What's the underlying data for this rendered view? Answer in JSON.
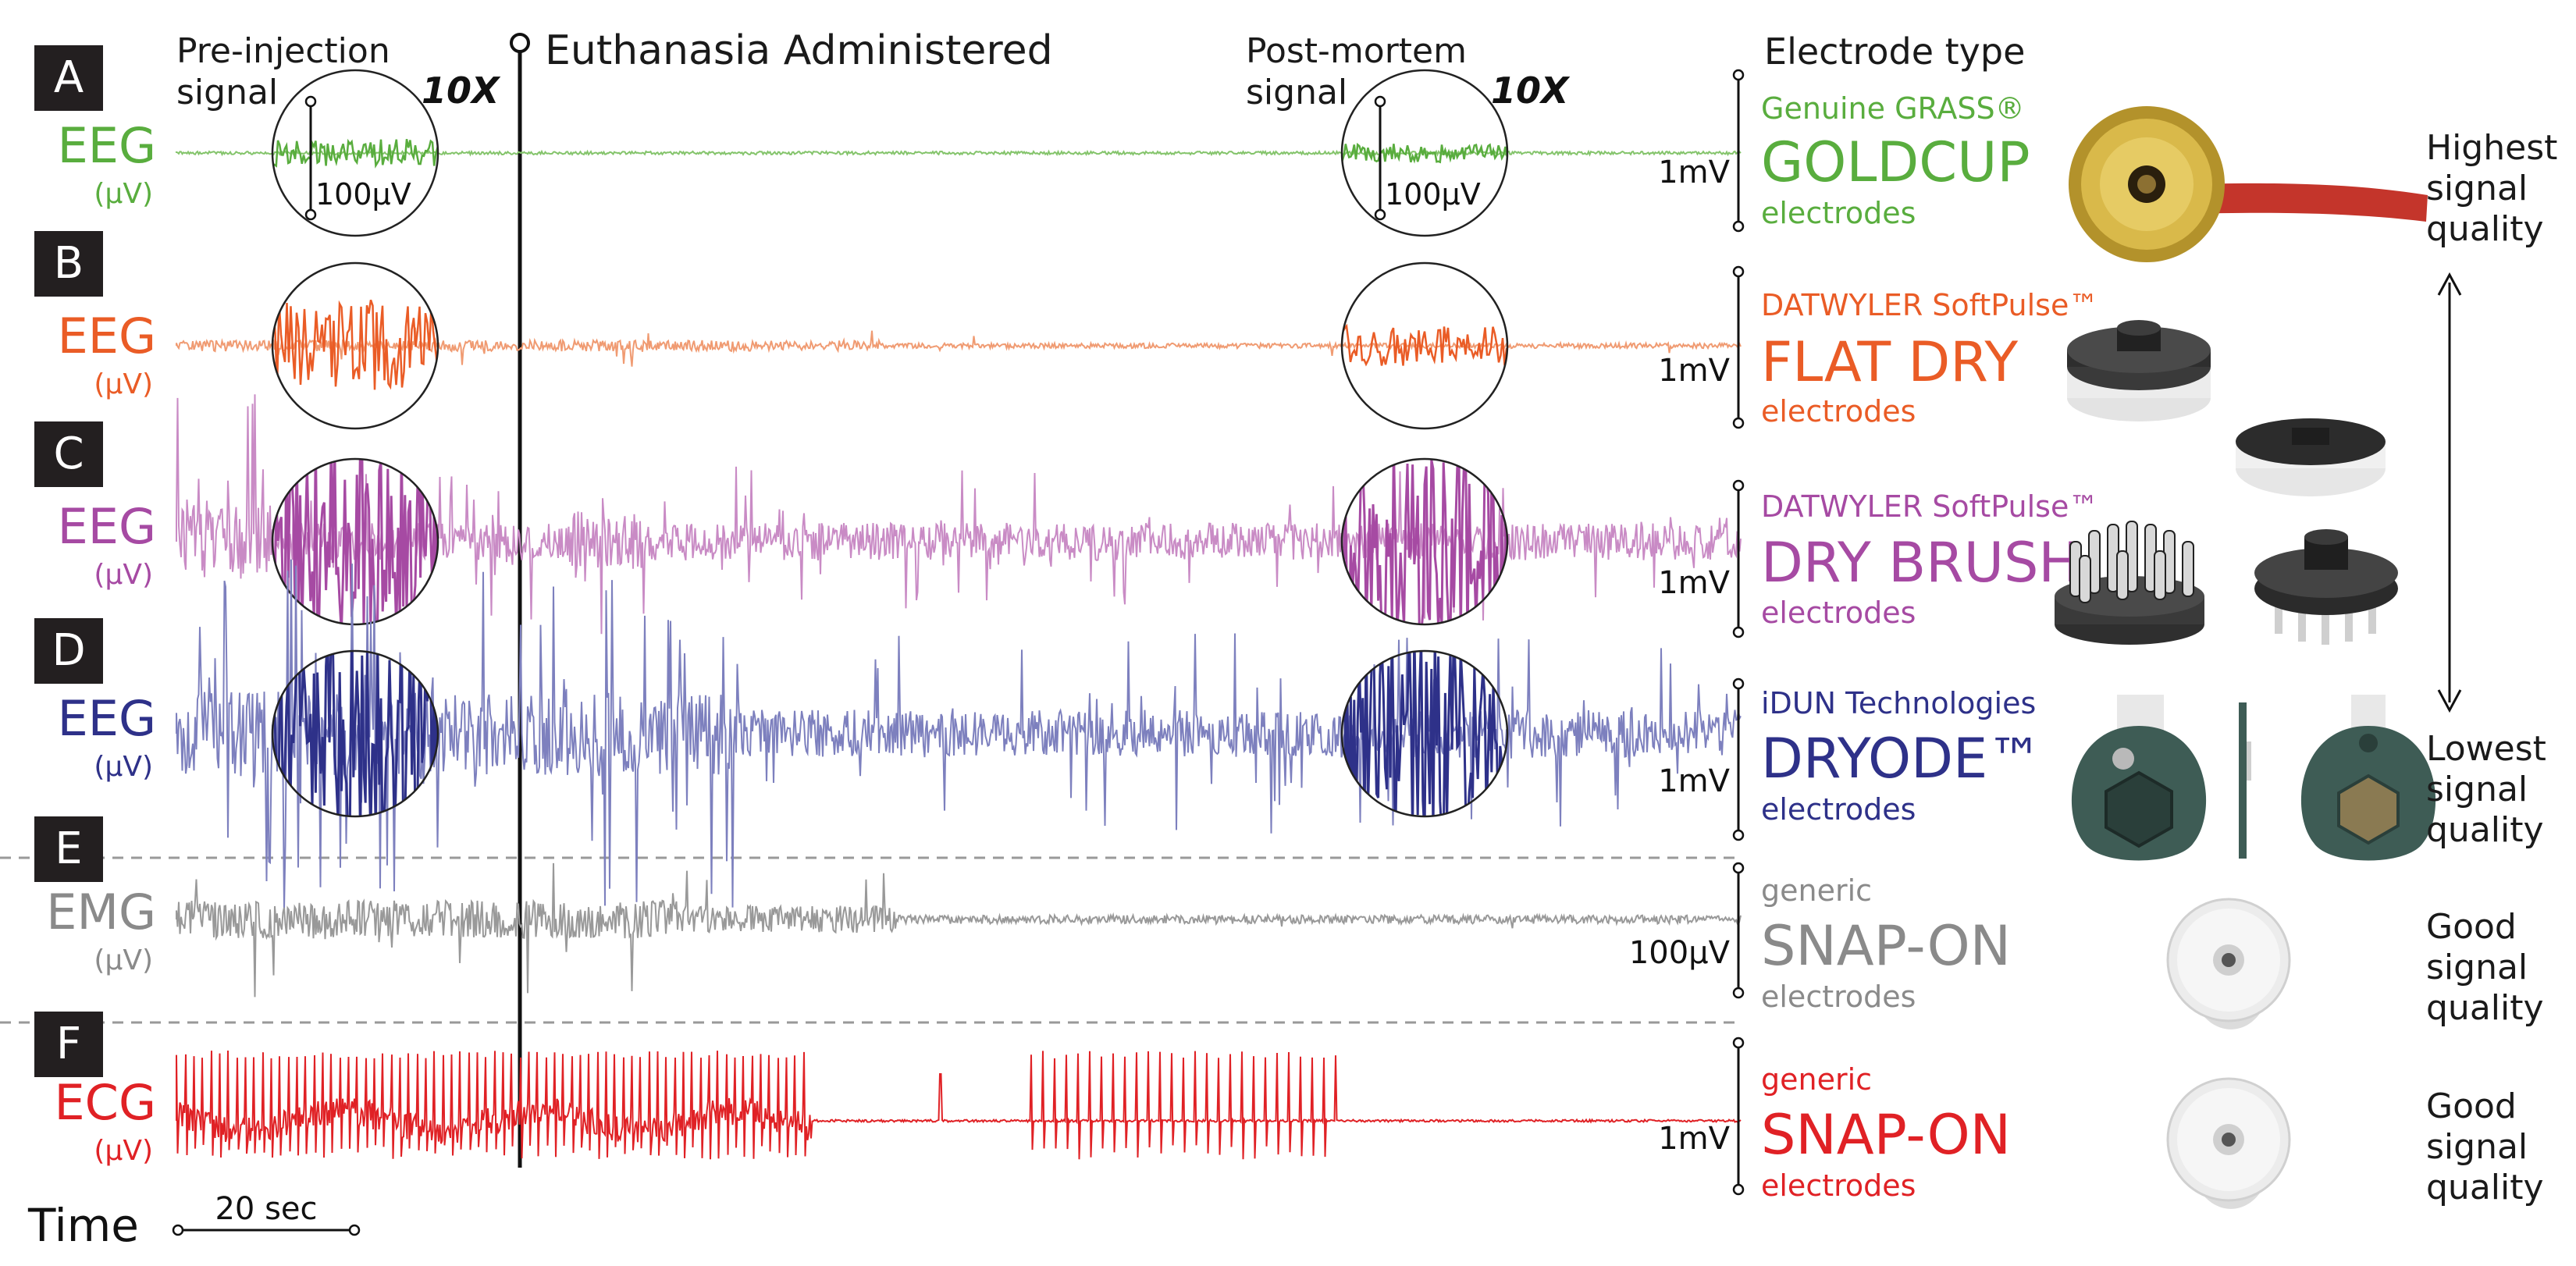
{
  "header": {
    "pre_injection_line1": "Pre-injection",
    "pre_injection_line2": "signal",
    "zoom_label": "10X",
    "euthanasia_label": "Euthanasia Administered",
    "post_mortem_line1": "Post-mortem",
    "post_mortem_line2": "signal",
    "electrode_type_heading": "Electrode type"
  },
  "magnifier_scale_label": "100µV",
  "colors": {
    "a": "#59ad3e",
    "b": "#ea5c26",
    "c": "#a64aa3",
    "d": "#2e3189",
    "e": "#8a8a8a",
    "f": "#e02125",
    "a_light": "#84c46b",
    "b_light": "#f09b72",
    "c_light": "#c98bc5",
    "d_light": "#7d80be",
    "e_light": "#999999",
    "f_light": "#e02125"
  },
  "panels": [
    {
      "letter": "A",
      "signal": "EEG",
      "unit": "(µV)",
      "scale": "1mV",
      "brand": "Genuine GRASS®",
      "model": "GOLDCUP",
      "suffix": "electrodes",
      "amp": 4,
      "spikes": 0,
      "seed": 11
    },
    {
      "letter": "B",
      "signal": "EEG",
      "unit": "(µV)",
      "scale": "1mV",
      "brand": "DATWYLER SoftPulse™",
      "model": "FLAT DRY",
      "suffix": "electrodes",
      "amp": 7,
      "spikes": 0.02,
      "seed": 23
    },
    {
      "letter": "C",
      "signal": "EEG",
      "unit": "(µV)",
      "scale": "1mV",
      "brand": "DATWYLER SoftPulse™",
      "model": "DRY BRUSH",
      "suffix": "electrodes",
      "amp": 24,
      "spikes": 0.08,
      "seed": 37
    },
    {
      "letter": "D",
      "signal": "EEG",
      "unit": "(µV)",
      "scale": "1mV",
      "brand": "iDUN Technologies",
      "model": "DRYODE™",
      "suffix": "electrodes",
      "amp": 34,
      "spikes": 0.12,
      "seed": 51
    },
    {
      "letter": "E",
      "signal": "EMG",
      "unit": "(µV)",
      "scale": "100µV",
      "brand": "generic",
      "model": "SNAP-ON",
      "suffix": "electrodes",
      "amp": 22,
      "spikes": 0.03,
      "seed": 67
    },
    {
      "letter": "F",
      "signal": "ECG",
      "unit": "(µV)",
      "scale": "1mV",
      "brand": "generic",
      "model": "SNAP-ON",
      "suffix": "electrodes",
      "amp": 0,
      "spikes": 0,
      "seed": 79
    }
  ],
  "quality": {
    "highest": [
      "Highest",
      "signal",
      "quality"
    ],
    "lowest": [
      "Lowest",
      "signal",
      "quality"
    ],
    "good_e": [
      "Good",
      "signal",
      "quality"
    ],
    "good_f": [
      "Good",
      "signal",
      "quality"
    ]
  },
  "time_label": "Time",
  "time_scale_label": "20 sec"
}
